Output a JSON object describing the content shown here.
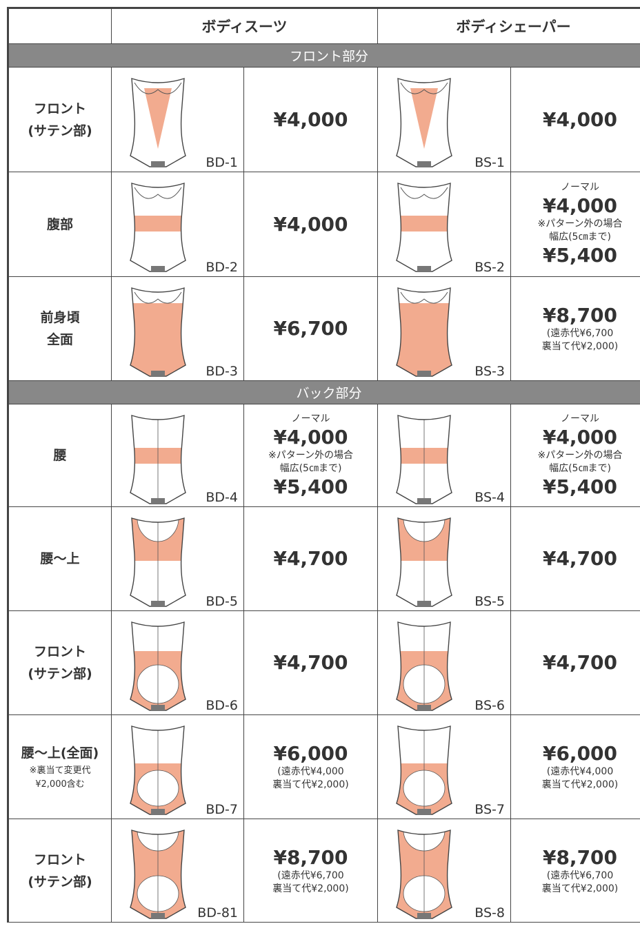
{
  "header": {
    "col1": "ボディスーツ",
    "col2": "ボディシェーパー"
  },
  "sections": [
    {
      "title": "フロント部分",
      "rows": [
        {
          "label": [
            "フロント",
            "(サテン部)"
          ],
          "bodysuit": {
            "code": "BD-1",
            "price": {
              "amount": "¥4,000"
            }
          },
          "shaper": {
            "code": "BS-1",
            "price": {
              "amount": "¥4,000"
            }
          }
        },
        {
          "label": [
            "腹部"
          ],
          "bodysuit": {
            "code": "BD-2",
            "price": {
              "amount": "¥4,000"
            }
          },
          "shaper": {
            "code": "BS-2",
            "price": {
              "normal": "ノーマル",
              "amount": "¥4,000",
              "note": "※パターン外の場合",
              "wide": "幅広(5㎝まで)",
              "wide_amount": "¥5,400"
            }
          }
        },
        {
          "label": [
            "前身頃",
            "全面"
          ],
          "bodysuit": {
            "code": "BD-3",
            "price": {
              "amount": "¥6,700"
            }
          },
          "shaper": {
            "code": "BS-3",
            "price": {
              "amount": "¥8,700",
              "breakdown": [
                "(遠赤代¥6,700",
                "裏当て代¥2,000)"
              ]
            }
          }
        }
      ]
    },
    {
      "title": "バック部分",
      "rows": [
        {
          "label": [
            "腰"
          ],
          "bodysuit": {
            "code": "BD-4",
            "price": {
              "normal": "ノーマル",
              "amount": "¥4,000",
              "note": "※パターン外の場合",
              "wide": "幅広(5㎝まで)",
              "wide_amount": "¥5,400"
            }
          },
          "shaper": {
            "code": "BS-4",
            "price": {
              "normal": "ノーマル",
              "amount": "¥4,000",
              "note": "※パターン外の場合",
              "wide": "幅広(5㎝まで)",
              "wide_amount": "¥5,400"
            }
          }
        },
        {
          "label": [
            "腰〜上"
          ],
          "bodysuit": {
            "code": "BD-5",
            "price": {
              "amount": "¥4,700"
            }
          },
          "shaper": {
            "code": "BS-5",
            "price": {
              "amount": "¥4,700"
            }
          }
        },
        {
          "label": [
            "フロント",
            "(サテン部)"
          ],
          "bodysuit": {
            "code": "BD-6",
            "price": {
              "amount": "¥4,700"
            }
          },
          "shaper": {
            "code": "BS-6",
            "price": {
              "amount": "¥4,700"
            }
          }
        },
        {
          "label": [
            "腰〜上(全面)"
          ],
          "label_note": [
            "※裏当て変更代",
            "¥2,000含む"
          ],
          "bodysuit": {
            "code": "BD-7",
            "price": {
              "amount": "¥6,000",
              "breakdown": [
                "(遠赤代¥4,000",
                "裏当て代¥2,000)"
              ]
            }
          },
          "shaper": {
            "code": "BS-7",
            "price": {
              "amount": "¥6,000",
              "breakdown": [
                "(遠赤代¥4,000",
                "裏当て代¥2,000)"
              ]
            }
          }
        },
        {
          "label": [
            "フロント",
            "(サテン部)"
          ],
          "bodysuit": {
            "code": "BD-81",
            "price": {
              "amount": "¥8,700",
              "breakdown": [
                "(遠赤代¥6,700",
                "裏当て代¥2,000)"
              ]
            }
          },
          "shaper": {
            "code": "BS-8",
            "price": {
              "amount": "¥8,700",
              "breakdown": [
                "(遠赤代¥6,700",
                "裏当て代¥2,000)"
              ]
            }
          }
        }
      ]
    }
  ]
}
